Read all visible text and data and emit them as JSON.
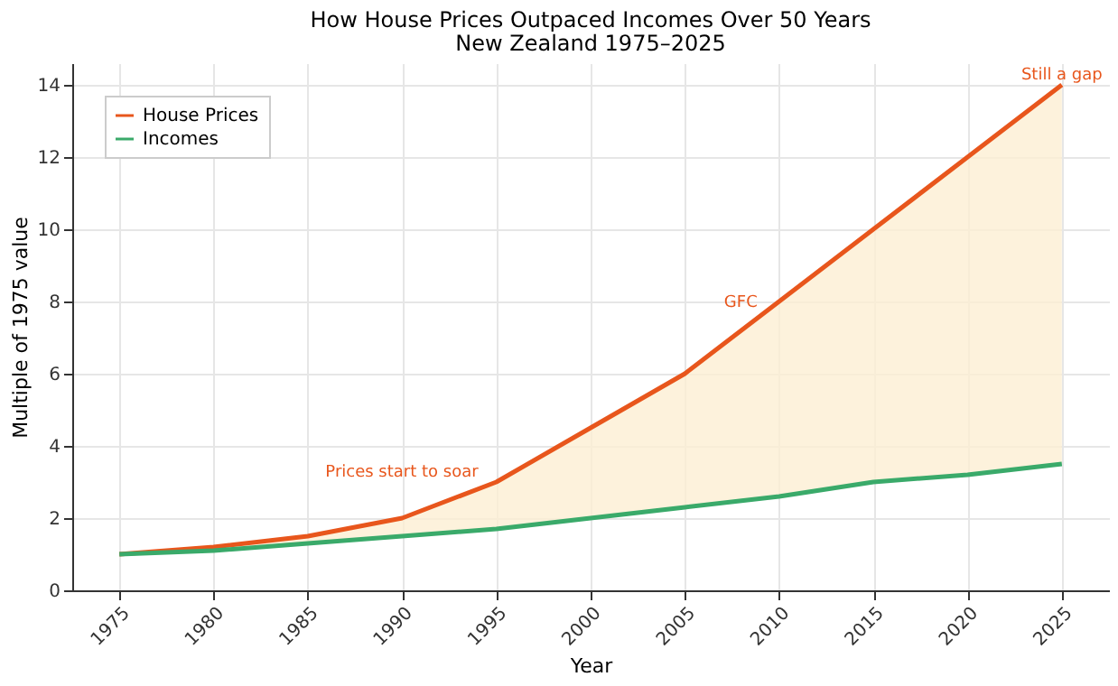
{
  "chart_data": {
    "type": "line",
    "title": "How House Prices Outpaced Incomes Over 50 Years",
    "subtitle": "New Zealand 1975–2025",
    "xlabel": "Year",
    "ylabel": "Multiple of 1975 value",
    "x": [
      1975,
      1980,
      1985,
      1990,
      1995,
      2000,
      2005,
      2010,
      2015,
      2020,
      2025
    ],
    "series": [
      {
        "name": "House Prices",
        "color": "#e8561c",
        "values": [
          1.0,
          1.2,
          1.5,
          2.0,
          3.0,
          4.5,
          6.0,
          8.0,
          10.0,
          12.0,
          14.0
        ],
        "lower": [
          1.0,
          1.1,
          1.3,
          1.5,
          1.7,
          2.0,
          2.3,
          2.6,
          3.0,
          3.2,
          3.5
        ],
        "upper": [
          1.0,
          1.2,
          1.5,
          2.0,
          3.0,
          4.5,
          6.0,
          8.0,
          10.0,
          12.0,
          14.0
        ]
      },
      {
        "name": "Incomes",
        "color": "#3aaa6a",
        "values": [
          1.0,
          1.1,
          1.3,
          1.5,
          1.7,
          2.0,
          2.3,
          2.6,
          3.0,
          3.2,
          3.5
        ]
      }
    ],
    "xlim": [
      1972.5,
      2027.5
    ],
    "xticks": [
      1975,
      1980,
      1985,
      1990,
      1995,
      2000,
      2005,
      2010,
      2015,
      2020,
      2025
    ],
    "ylim": [
      0,
      14.6
    ],
    "yticks": [
      0,
      2,
      4,
      6,
      8,
      10,
      12,
      14
    ],
    "annotations": [
      {
        "text": "Prices start to soar",
        "x": 1995,
        "y": 3.0
      },
      {
        "text": "GFC",
        "x": 2010,
        "y": 8.0
      },
      {
        "text": "Still a gap",
        "x": 2025,
        "y": 14
      }
    ],
    "grid": true,
    "legend": "top left",
    "marker": "none",
    "line_style": "solid"
  }
}
